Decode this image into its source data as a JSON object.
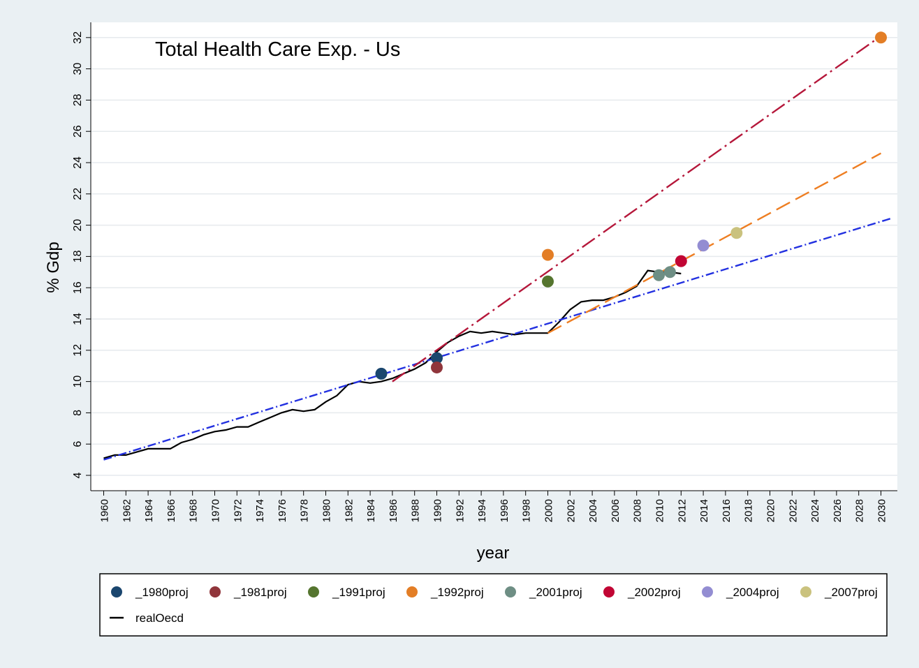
{
  "chart_data": {
    "type": "line",
    "title": "Total Health Care Exp. - Us",
    "xlabel": "year",
    "ylabel": "% Gdp",
    "xlim": [
      1959,
      2031
    ],
    "ylim": [
      3,
      33
    ],
    "x_ticks": [
      1960,
      1962,
      1964,
      1966,
      1968,
      1970,
      1972,
      1974,
      1976,
      1978,
      1980,
      1982,
      1984,
      1986,
      1988,
      1990,
      1992,
      1994,
      1996,
      1998,
      2000,
      2002,
      2004,
      2006,
      2008,
      2010,
      2012,
      2014,
      2016,
      2018,
      2020,
      2022,
      2024,
      2026,
      2028,
      2030
    ],
    "y_ticks": [
      4,
      6,
      8,
      10,
      12,
      14,
      16,
      18,
      20,
      22,
      24,
      26,
      28,
      30,
      32
    ],
    "grid": "horizontal",
    "legend_position": "bottom",
    "series": [
      {
        "name": "realOecd",
        "kind": "line",
        "color": "#000000",
        "x": [
          1960,
          1961,
          1962,
          1963,
          1964,
          1965,
          1966,
          1967,
          1968,
          1969,
          1970,
          1971,
          1972,
          1973,
          1974,
          1975,
          1976,
          1977,
          1978,
          1979,
          1980,
          1981,
          1982,
          1983,
          1984,
          1985,
          1986,
          1987,
          1988,
          1989,
          1990,
          1991,
          1992,
          1993,
          1994,
          1995,
          1996,
          1997,
          1998,
          1999,
          2000,
          2001,
          2002,
          2003,
          2004,
          2005,
          2006,
          2007,
          2008,
          2009,
          2010,
          2011,
          2012
        ],
        "y": [
          5.1,
          5.3,
          5.3,
          5.5,
          5.7,
          5.7,
          5.7,
          6.1,
          6.3,
          6.6,
          6.8,
          6.9,
          7.1,
          7.1,
          7.4,
          7.7,
          8.0,
          8.2,
          8.1,
          8.2,
          8.7,
          9.1,
          9.8,
          10.0,
          9.9,
          10.0,
          10.2,
          10.5,
          10.8,
          11.2,
          11.9,
          12.5,
          12.9,
          13.2,
          13.1,
          13.2,
          13.1,
          13.0,
          13.1,
          13.1,
          13.1,
          13.8,
          14.6,
          15.1,
          15.2,
          15.2,
          15.4,
          15.7,
          16.1,
          17.1,
          17.0,
          17.0,
          16.9
        ]
      },
      {
        "name": "",
        "kind": "trend",
        "color": "#2230e0",
        "dash": "dash-dot",
        "x": [
          1960,
          2031
        ],
        "y": [
          5.0,
          20.45
        ]
      },
      {
        "name": "",
        "kind": "trend",
        "color": "#b5173a",
        "dash": "long-dash-dot",
        "x": [
          1986,
          2030
        ],
        "y": [
          10.0,
          32.1
        ]
      },
      {
        "name": "",
        "kind": "trend",
        "color": "#ee7e22",
        "dash": "long-dash",
        "x": [
          2000,
          2030
        ],
        "y": [
          13.1,
          24.6
        ]
      },
      {
        "name": "_1980proj",
        "kind": "point",
        "color": "#1a466e",
        "x": [
          1985,
          1990
        ],
        "y": [
          10.5,
          11.5
        ]
      },
      {
        "name": "_1981proj",
        "kind": "point",
        "color": "#90353b",
        "x": [
          1990
        ],
        "y": [
          10.9
        ]
      },
      {
        "name": "_1991proj",
        "kind": "point",
        "color": "#55752f",
        "x": [
          2000
        ],
        "y": [
          16.4
        ]
      },
      {
        "name": "_1992proj",
        "kind": "point",
        "color": "#e37e26",
        "x": [
          2000,
          2030
        ],
        "y": [
          18.1,
          32.0
        ]
      },
      {
        "name": "_2001proj",
        "kind": "point",
        "color": "#6e8e84",
        "x": [
          2010,
          2011
        ],
        "y": [
          16.8,
          17.0
        ]
      },
      {
        "name": "_2002proj",
        "kind": "point",
        "color": "#c10534",
        "x": [
          2012
        ],
        "y": [
          17.7
        ]
      },
      {
        "name": "_2004proj",
        "kind": "point",
        "color": "#938dd2",
        "x": [
          2014
        ],
        "y": [
          18.7
        ]
      },
      {
        "name": "_2007proj",
        "kind": "point",
        "color": "#cac27e",
        "x": [
          2017
        ],
        "y": [
          19.5
        ]
      }
    ],
    "legend": [
      {
        "label": "_1980proj",
        "symbol": "point",
        "color": "#1a466e"
      },
      {
        "label": "_1981proj",
        "symbol": "point",
        "color": "#90353b"
      },
      {
        "label": "_1991proj",
        "symbol": "point",
        "color": "#55752f"
      },
      {
        "label": "_1992proj",
        "symbol": "point",
        "color": "#e37e26"
      },
      {
        "label": "_2001proj",
        "symbol": "point",
        "color": "#6e8e84"
      },
      {
        "label": "_2002proj",
        "symbol": "point",
        "color": "#c10534"
      },
      {
        "label": "_2004proj",
        "symbol": "point",
        "color": "#938dd2"
      },
      {
        "label": "_2007proj",
        "symbol": "point",
        "color": "#cac27e"
      },
      {
        "label": "realOecd",
        "symbol": "line",
        "color": "#000000"
      }
    ]
  }
}
